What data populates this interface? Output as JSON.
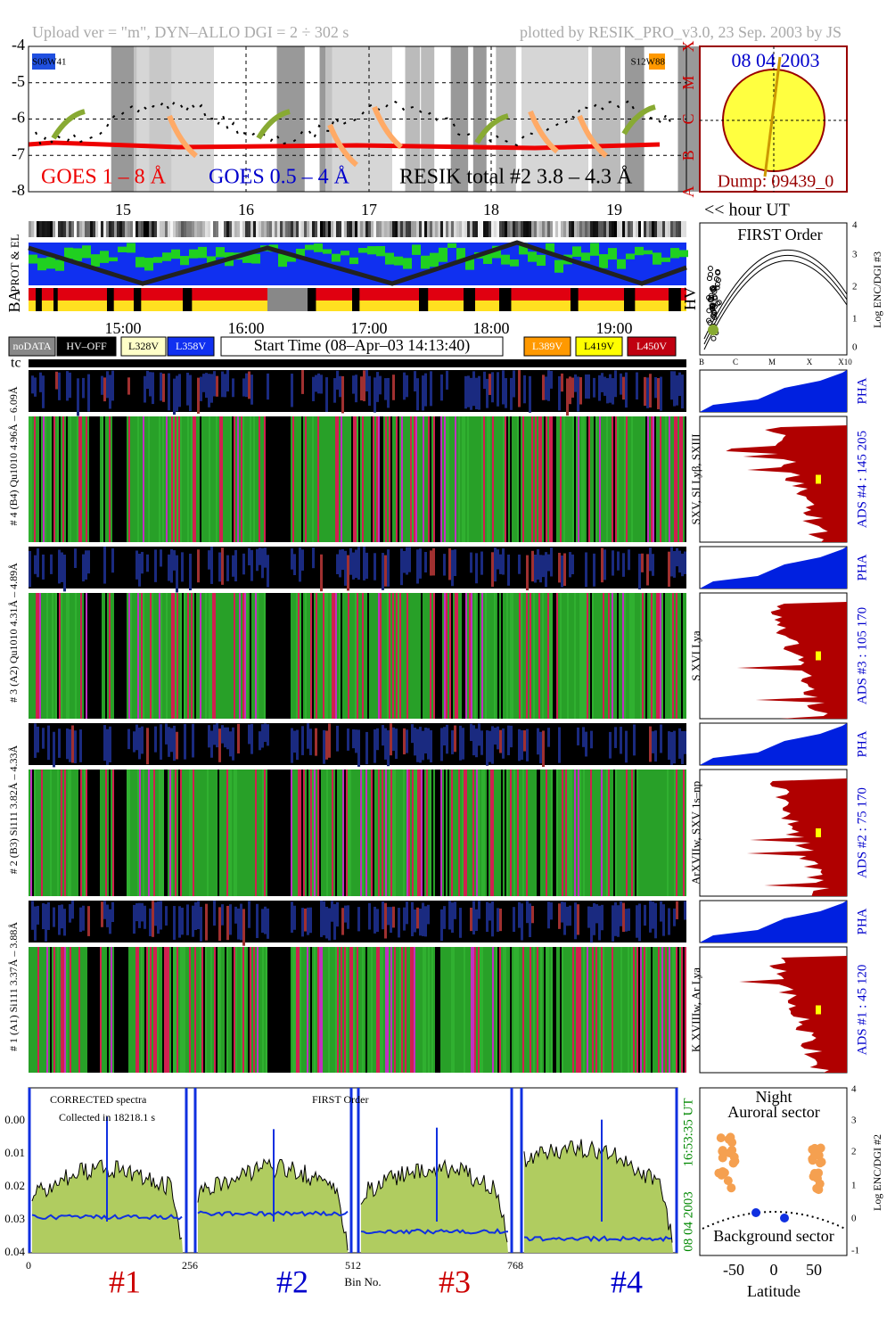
{
  "header": {
    "left": "Upload ver = \"m\", DYN–ALLO DGI =   2 ÷ 302 s",
    "right": "plotted by RESIK_PRO_v3.0, 23 Sep. 2003 by JS"
  },
  "goes_panel": {
    "yticks": [
      "-4",
      "-5",
      "-6",
      "-7",
      "-8"
    ],
    "legend": [
      "GOES 1 – 8 Å",
      "GOES 0.5 – 4 Å",
      "RESIK total #2  3.8 – 4.3 Å"
    ],
    "labels": [
      "S08W41",
      "S12W88"
    ]
  },
  "sun_panel": {
    "date": "08 04 2003",
    "dump": "Dump: 09439_0",
    "classes": [
      "X",
      "M",
      "C",
      "B",
      "A"
    ]
  },
  "hours": {
    "ticks": [
      "15",
      "16",
      "17",
      "18",
      "19"
    ],
    "label": "<< hour UT"
  },
  "strip_labels": [
    "PROT & EL",
    "BA",
    "HV"
  ],
  "times": [
    "15:00",
    "16:00",
    "17:00",
    "18:00",
    "19:00"
  ],
  "legend": {
    "left": [
      "noDATA",
      "HV–OFF",
      "L328V",
      "L358V"
    ],
    "start": "Start Time (08–Apr–03 14:13:40)",
    "right": [
      "L389V",
      "L419V",
      "L450V"
    ]
  },
  "tc": "tc",
  "first_order": {
    "title": "FIRST Order",
    "yticks": [
      "4",
      "3",
      "2",
      "1",
      "0"
    ],
    "xticks": [
      "B",
      "C",
      "M",
      "X",
      "X10"
    ],
    "ylabel": "Log ENC/DGI #3"
  },
  "channels": [
    {
      "range": "# 4 (B4) Qu1010 4.96Å – 6.09Å",
      "lines": "SXV, SI Lyβ, SXIII",
      "ads": "ADS #4 :   145 205",
      "pha": "PHA"
    },
    {
      "range": "# 3 (A2) Qu1010 4.31Å – 4.89Å",
      "lines": "S XVI Lya",
      "ads": "ADS #3 :   105 170",
      "pha": "PHA"
    },
    {
      "range": "# 2 (B3) Si111 3.82Å – 4.33Å",
      "lines": "ArXVIIw, SXV 1s–np",
      "ads": "ADS #2 :   75 170",
      "pha": "PHA"
    },
    {
      "range": "# 1 (A1) Si111 3.37Å – 3.88Å",
      "lines": "K XVIIIw, Ar Lya",
      "ads": "ADS #1 :   45 120",
      "pha": "PHA"
    }
  ],
  "spectrum": {
    "yticks": [
      "0.04",
      "0.03",
      "0.02",
      "0.01",
      "0.00"
    ],
    "xticks": [
      "0",
      "256",
      "512",
      "768"
    ],
    "xlabel": "Bin No.",
    "notes": [
      "CORRECTED spectra",
      "Collected in 18218.1 s",
      "FIRST Order"
    ],
    "time": "16:53:35 UT",
    "date": "08 04 2003",
    "channels": [
      "#1",
      "#2",
      "#3",
      "#4"
    ]
  },
  "latitude": {
    "top": "Night",
    "aurora": "Auroral sector",
    "background": "Background sector",
    "yticks": [
      "4",
      "3",
      "2",
      "1",
      "0",
      "-1"
    ],
    "xticks": [
      "-50",
      "0",
      "50"
    ],
    "xlabel": "Latitude",
    "ylabel": "Log ENC/DGI #2"
  }
}
